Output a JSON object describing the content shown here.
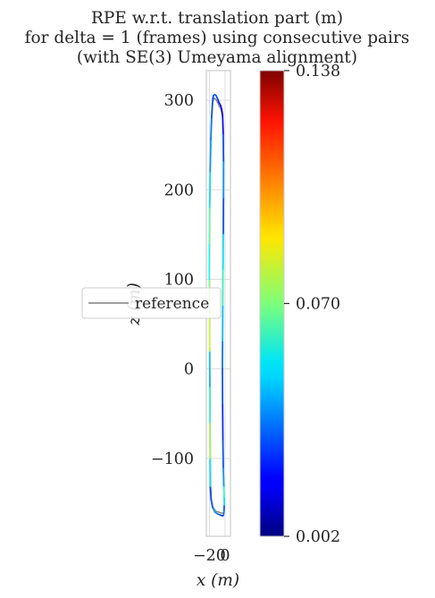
{
  "chart_data": {
    "type": "line",
    "title_lines": [
      "RPE w.r.t. translation part (m)",
      "for delta = 1 (frames) using consecutive pairs",
      "(with SE(3) Umeyama alignment)"
    ],
    "xlabel": "x (m)",
    "ylabel": "z (m)",
    "xlim": [
      -24,
      7
    ],
    "ylim": [
      -187,
      333
    ],
    "xticks": [
      -20,
      0
    ],
    "xtick_labels": [
      "−20",
      "0"
    ],
    "yticks": [
      300,
      200,
      100,
      0,
      -100
    ],
    "ytick_labels": [
      "300",
      "200",
      "100",
      "0",
      "−100"
    ],
    "grid": true,
    "legend": {
      "placement": "center-left",
      "entries": [
        "reference"
      ]
    },
    "colorbar": {
      "min": 0.002,
      "max": 0.138,
      "tick_values": [
        0.138,
        0.07,
        0.002
      ],
      "tick_labels": [
        "0.138",
        "0.070",
        "0.002"
      ],
      "colormap": "jet"
    },
    "series": [
      {
        "name": "reference",
        "color": "#808080",
        "x": [
          -1,
          -1.2,
          -1.5,
          -2,
          -3,
          -5,
          -8,
          -12,
          -15.5,
          -17.5,
          -18.5,
          -18.8,
          -19,
          -19.2,
          -19.5,
          -19.8,
          -20,
          -19.9,
          -19.5,
          -18.8,
          -18,
          -17,
          -16,
          -15.5,
          -15,
          -14,
          -13,
          -12,
          -11,
          -10,
          -8.5,
          -7.5,
          -6,
          -4.5,
          -3.2,
          -2.6,
          -2.2,
          -2.3,
          -2.5,
          -2.8,
          -3.1,
          -3.4,
          -3.6,
          -3.4,
          -3,
          -2.5,
          -1.8,
          -1.2,
          -1
        ],
        "y": [
          -150,
          -157,
          -160,
          -161,
          -161,
          -161,
          -160,
          -159,
          -154,
          -145,
          -130,
          -100,
          -60,
          -20,
          20,
          60,
          100,
          140,
          180,
          220,
          255,
          278,
          293,
          298,
          300,
          302,
          302,
          301,
          300,
          298,
          296,
          293,
          292,
          287,
          280,
          260,
          230,
          190,
          150,
          110,
          70,
          30,
          0,
          -40,
          -80,
          -110,
          -130,
          -142,
          -150
        ]
      },
      {
        "name": "",
        "color_by_error": true,
        "x": [
          -1,
          -1.3,
          -1.8,
          -2.5,
          -4,
          -6.5,
          -9.5,
          -13,
          -16,
          -18,
          -19,
          -19.3,
          -19.4,
          -19.6,
          -19.8,
          -20.1,
          -20.3,
          -20.2,
          -19.8,
          -19.1,
          -18.3,
          -17.3,
          -16.3,
          -15.6,
          -15,
          -13.8,
          -12.6,
          -11.4,
          -10.3,
          -9.2,
          -8,
          -6.8,
          -5.6,
          -4.2,
          -3,
          -2.2,
          -1.8,
          -1.9,
          -2.1,
          -2.4,
          -2.7,
          -3,
          -3.2,
          -3,
          -2.6,
          -2.1,
          -1.5,
          -1,
          -0.7
        ],
        "y": [
          -152,
          -159,
          -163,
          -164,
          -164,
          -163,
          -162,
          -160,
          -155,
          -146,
          -131,
          -100,
          -60,
          -20,
          20,
          60,
          100,
          140,
          180,
          220,
          256,
          281,
          296,
          302,
          305,
          306,
          306,
          305,
          303,
          301,
          298,
          296,
          294,
          290,
          283,
          262,
          231,
          190,
          150,
          110,
          70,
          30,
          0,
          -40,
          -80,
          -111,
          -132,
          -144,
          -152
        ],
        "error": [
          0.03,
          0.035,
          0.03,
          0.028,
          0.025,
          0.03,
          0.035,
          0.04,
          0.032,
          0.028,
          0.05,
          0.075,
          0.06,
          0.045,
          0.08,
          0.07,
          0.055,
          0.065,
          0.05,
          0.04,
          0.035,
          0.03,
          0.03,
          0.025,
          0.028,
          0.032,
          0.03,
          0.03,
          0.028,
          0.025,
          0.022,
          0.02,
          0.018,
          0.015,
          0.02,
          0.03,
          0.04,
          0.03,
          0.05,
          0.06,
          0.045,
          0.035,
          0.03,
          0.025,
          0.03,
          0.04,
          0.06,
          0.05,
          0.03
        ]
      }
    ]
  }
}
